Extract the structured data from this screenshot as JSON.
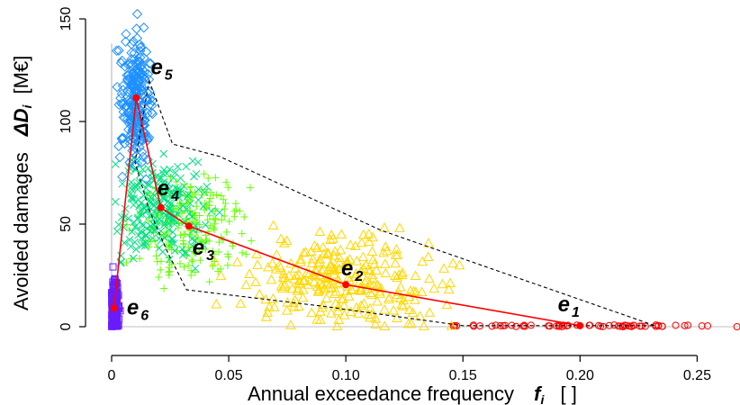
{
  "chart_data": {
    "type": "scatter",
    "xlabel": "Annual exceedance frequency",
    "xlabel_symbol": "f",
    "xlabel_symbol_sub": "i",
    "xlabel_unit": "[ ]",
    "ylabel": "Avoided damages",
    "ylabel_symbol": "ΔD",
    "ylabel_symbol_sub": "i",
    "ylabel_unit": "[M€]",
    "xlim": [
      0,
      0.25
    ],
    "ylim": [
      0,
      150
    ],
    "x_ticks": [
      0,
      0.05,
      0.1,
      0.15,
      0.2,
      0.25
    ],
    "x_tick_labels": [
      "0",
      "0.05",
      "0.10",
      "0.15",
      "0.20",
      "0.25"
    ],
    "y_ticks": [
      0,
      50,
      100,
      150
    ],
    "y_tick_labels": [
      "0",
      "50",
      "100",
      "150"
    ],
    "grid": false,
    "series": [
      {
        "marker": "circle-open",
        "color": "#ff0000",
        "cloud": {
          "x_range": [
            0.145,
            0.255
          ],
          "y_range": [
            0,
            0.8
          ],
          "n": 60
        },
        "extra_points": [
          {
            "x": 0.267,
            "y": 0
          }
        ]
      },
      {
        "marker": "triangle-open",
        "color": "#ffd700",
        "cloud": {
          "x_center": 0.1,
          "x_spread": 0.022,
          "y_center": 22,
          "y_spread": 11,
          "n": 260
        }
      },
      {
        "marker": "plus",
        "color": "#66ff00",
        "cloud": {
          "x_center": 0.033,
          "x_spread": 0.011,
          "y_center": 48,
          "y_spread": 13,
          "n": 220
        }
      },
      {
        "marker": "cross",
        "color": "#00e080",
        "cloud": {
          "x_center": 0.021,
          "x_spread": 0.01,
          "y_center": 58,
          "y_spread": 14,
          "n": 220
        }
      },
      {
        "marker": "diamond-open",
        "color": "#1e90ff",
        "cloud": {
          "x_center": 0.0105,
          "x_spread": 0.0035,
          "y_center": 110,
          "y_spread": 15,
          "n": 240
        }
      },
      {
        "marker": "square-open",
        "color": "#6a1bff",
        "cloud": {
          "x_center": 0.0012,
          "x_spread": 0.0009,
          "y_center": 10,
          "y_spread": 7,
          "n": 180
        }
      }
    ],
    "median_path": {
      "color": "#ff0000",
      "points": [
        {
          "x": 0.001,
          "y": 9
        },
        {
          "x": 0.0105,
          "y": 111.5
        },
        {
          "x": 0.021,
          "y": 58
        },
        {
          "x": 0.033,
          "y": 49
        },
        {
          "x": 0.1,
          "y": 20.5
        },
        {
          "x": 0.2,
          "y": 0.5
        }
      ]
    },
    "hull_path": {
      "color": "#000000",
      "points": [
        {
          "x": 0.016,
          "y": 120
        },
        {
          "x": 0.026,
          "y": 89
        },
        {
          "x": 0.046,
          "y": 83
        },
        {
          "x": 0.115,
          "y": 47
        },
        {
          "x": 0.232,
          "y": 0.5
        },
        {
          "x": 0.15,
          "y": 0.5
        },
        {
          "x": 0.09,
          "y": 10
        },
        {
          "x": 0.032,
          "y": 18
        },
        {
          "x": 0.024,
          "y": 36
        },
        {
          "x": 0.016,
          "y": 57
        },
        {
          "x": 0.01,
          "y": 80
        }
      ]
    },
    "vertical_line": {
      "x": 0,
      "y_range": [
        0,
        138
      ],
      "color": "#cccccc"
    },
    "horizontal_line": {
      "y": 0,
      "x_range": [
        0,
        0.268
      ],
      "color": "#cccccc"
    },
    "annotations": [
      {
        "main": "e",
        "sub": "1",
        "x": 0.1905,
        "y": 7.5
      },
      {
        "main": "e",
        "sub": "2",
        "x": 0.098,
        "y": 25
      },
      {
        "main": "e",
        "sub": "3",
        "x": 0.0345,
        "y": 35
      },
      {
        "main": "e",
        "sub": "4",
        "x": 0.0195,
        "y": 64
      },
      {
        "main": "e",
        "sub": "5",
        "x": 0.0167,
        "y": 123
      },
      {
        "main": "e",
        "sub": "6",
        "x": 0.0065,
        "y": 6
      }
    ]
  }
}
